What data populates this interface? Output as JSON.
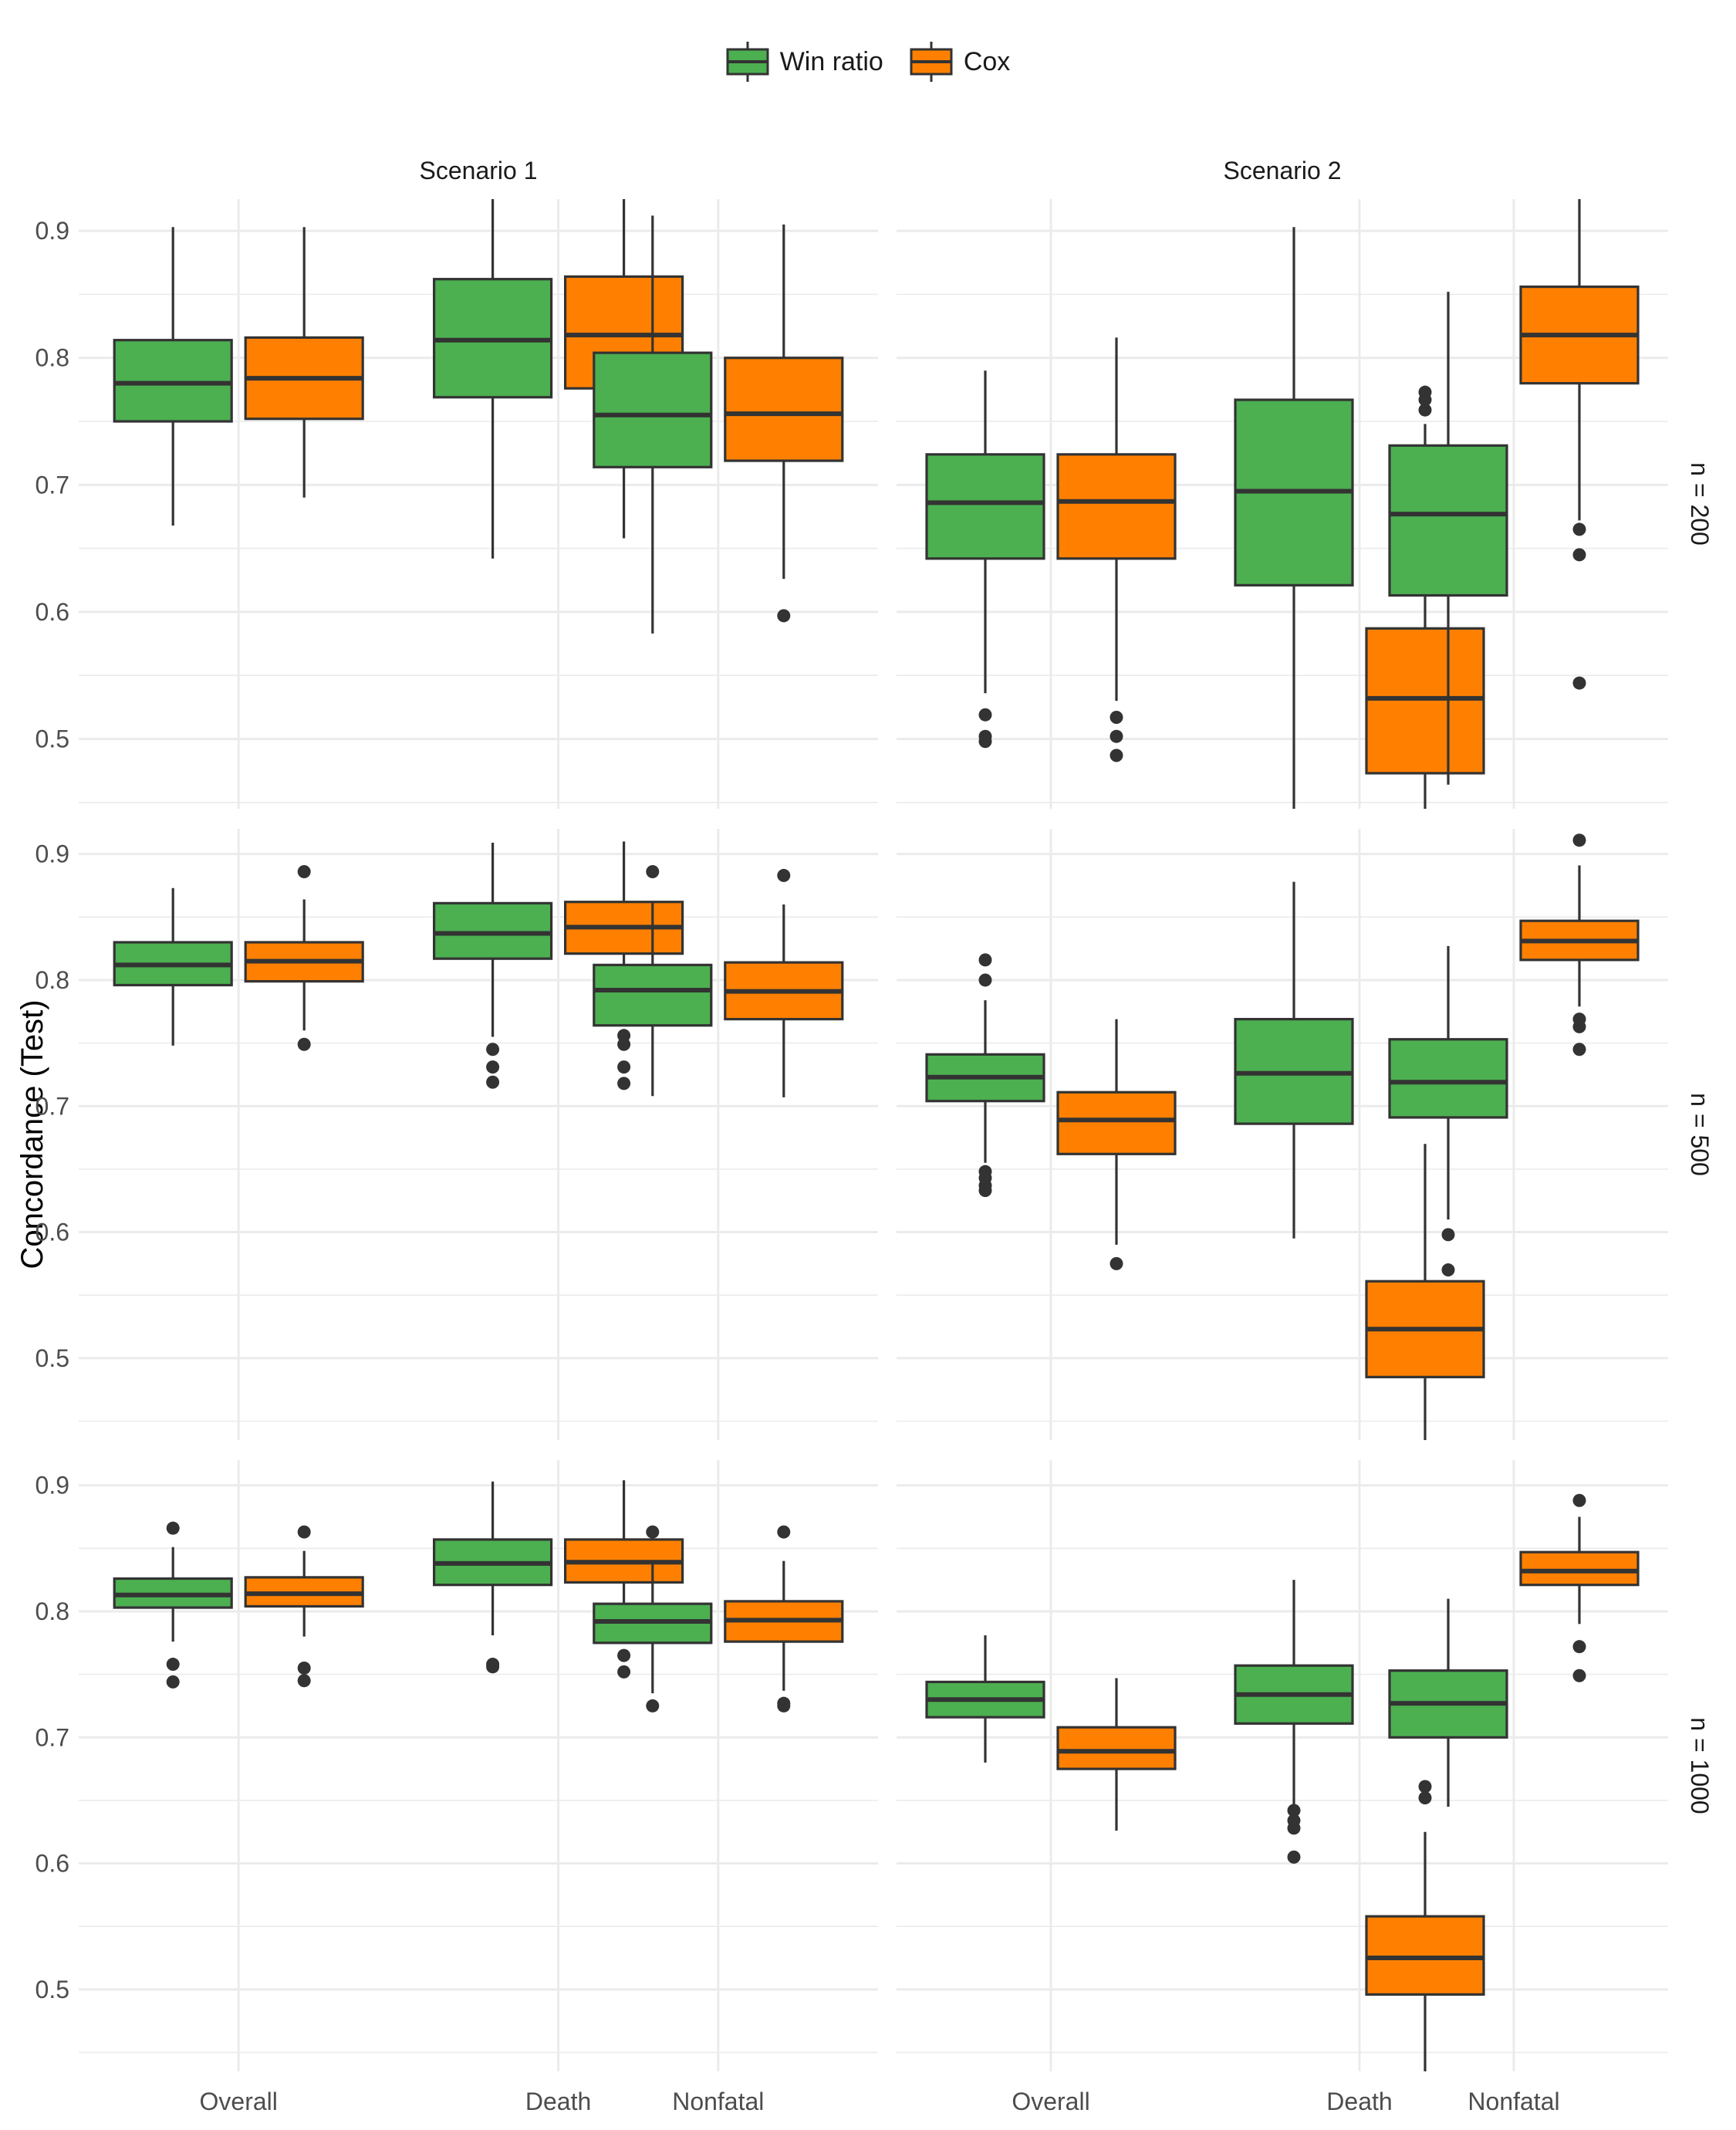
{
  "chart_data": {
    "type": "boxplot",
    "title": "",
    "ylabel": "Concordance (Test)",
    "xlabel": "",
    "legend": {
      "position": "top",
      "entries": [
        {
          "name": "Win ratio",
          "color": "#4CAF50"
        },
        {
          "name": "Cox",
          "color": "#FF8000"
        }
      ]
    },
    "facet_columns": [
      "Scenario 1",
      "Scenario 2"
    ],
    "facet_rows": [
      "n = 200",
      "n = 500",
      "n = 1000"
    ],
    "categories": [
      "Overall",
      "Death",
      "Nonfatal"
    ],
    "y_ticks": [
      0.5,
      0.6,
      0.7,
      0.8,
      0.9
    ],
    "ylim_by_row": [
      [
        0.445,
        0.925
      ],
      [
        0.435,
        0.92
      ],
      [
        0.435,
        0.92
      ]
    ],
    "grid": true,
    "panels": [
      {
        "row": 0,
        "col": 0,
        "boxes": [
          {
            "category": "Overall",
            "series": "Win ratio",
            "q1": 0.75,
            "median": 0.78,
            "q3": 0.814,
            "whisker_low": 0.668,
            "whisker_high": 0.903,
            "outliers": []
          },
          {
            "category": "Overall",
            "series": "Cox",
            "q1": 0.752,
            "median": 0.784,
            "q3": 0.816,
            "whisker_low": 0.69,
            "whisker_high": 0.903,
            "outliers": []
          },
          {
            "category": "Death",
            "series": "Win ratio",
            "q1": 0.769,
            "median": 0.814,
            "q3": 0.862,
            "whisker_low": 0.642,
            "whisker_high": 0.925,
            "outliers": []
          },
          {
            "category": "Death",
            "series": "Cox",
            "q1": 0.776,
            "median": 0.818,
            "q3": 0.864,
            "whisker_low": 0.658,
            "whisker_high": 0.925,
            "outliers": []
          },
          {
            "category": "Nonfatal",
            "series": "Win ratio",
            "q1": 0.714,
            "median": 0.755,
            "q3": 0.804,
            "whisker_low": 0.583,
            "whisker_high": 0.912,
            "outliers": []
          },
          {
            "category": "Nonfatal",
            "series": "Cox",
            "q1": 0.719,
            "median": 0.756,
            "q3": 0.8,
            "whisker_low": 0.626,
            "whisker_high": 0.905,
            "outliers": [
              0.597
            ]
          }
        ]
      },
      {
        "row": 0,
        "col": 1,
        "boxes": [
          {
            "category": "Overall",
            "series": "Win ratio",
            "q1": 0.642,
            "median": 0.686,
            "q3": 0.724,
            "whisker_low": 0.536,
            "whisker_high": 0.79,
            "outliers": [
              0.519,
              0.502,
              0.498
            ]
          },
          {
            "category": "Overall",
            "series": "Cox",
            "q1": 0.642,
            "median": 0.687,
            "q3": 0.724,
            "whisker_low": 0.53,
            "whisker_high": 0.816,
            "outliers": [
              0.517,
              0.502,
              0.487
            ]
          },
          {
            "category": "Death",
            "series": "Win ratio",
            "q1": 0.621,
            "median": 0.695,
            "q3": 0.767,
            "whisker_low": 0.445,
            "whisker_high": 0.903,
            "outliers": []
          },
          {
            "category": "Death",
            "series": "Cox",
            "q1": 0.473,
            "median": 0.532,
            "q3": 0.587,
            "whisker_low": 0.445,
            "whisker_high": 0.748,
            "outliers": [
              0.773,
              0.767,
              0.759
            ]
          },
          {
            "category": "Nonfatal",
            "series": "Win ratio",
            "q1": 0.613,
            "median": 0.677,
            "q3": 0.731,
            "whisker_low": 0.464,
            "whisker_high": 0.852,
            "outliers": []
          },
          {
            "category": "Nonfatal",
            "series": "Cox",
            "q1": 0.78,
            "median": 0.818,
            "q3": 0.856,
            "whisker_low": 0.672,
            "whisker_high": 0.925,
            "outliers": [
              0.665,
              0.645,
              0.544
            ]
          }
        ]
      },
      {
        "row": 1,
        "col": 0,
        "boxes": [
          {
            "category": "Overall",
            "series": "Win ratio",
            "q1": 0.796,
            "median": 0.812,
            "q3": 0.83,
            "whisker_low": 0.748,
            "whisker_high": 0.873,
            "outliers": []
          },
          {
            "category": "Overall",
            "series": "Cox",
            "q1": 0.799,
            "median": 0.815,
            "q3": 0.83,
            "whisker_low": 0.76,
            "whisker_high": 0.864,
            "outliers": [
              0.886,
              0.749
            ]
          },
          {
            "category": "Death",
            "series": "Win ratio",
            "q1": 0.817,
            "median": 0.837,
            "q3": 0.861,
            "whisker_low": 0.755,
            "whisker_high": 0.909,
            "outliers": [
              0.745,
              0.731,
              0.719
            ]
          },
          {
            "category": "Death",
            "series": "Cox",
            "q1": 0.821,
            "median": 0.842,
            "q3": 0.862,
            "whisker_low": 0.776,
            "whisker_high": 0.91,
            "outliers": [
              0.756,
              0.749,
              0.731,
              0.718
            ]
          },
          {
            "category": "Nonfatal",
            "series": "Win ratio",
            "q1": 0.764,
            "median": 0.792,
            "q3": 0.812,
            "whisker_low": 0.708,
            "whisker_high": 0.862,
            "outliers": [
              0.886
            ]
          },
          {
            "category": "Nonfatal",
            "series": "Cox",
            "q1": 0.769,
            "median": 0.791,
            "q3": 0.814,
            "whisker_low": 0.707,
            "whisker_high": 0.86,
            "outliers": [
              0.883
            ]
          }
        ]
      },
      {
        "row": 1,
        "col": 1,
        "boxes": [
          {
            "category": "Overall",
            "series": "Win ratio",
            "q1": 0.704,
            "median": 0.723,
            "q3": 0.741,
            "whisker_low": 0.655,
            "whisker_high": 0.784,
            "outliers": [
              0.816,
              0.8,
              0.648,
              0.643,
              0.637,
              0.633
            ]
          },
          {
            "category": "Overall",
            "series": "Cox",
            "q1": 0.662,
            "median": 0.689,
            "q3": 0.711,
            "whisker_low": 0.59,
            "whisker_high": 0.769,
            "outliers": [
              0.575
            ]
          },
          {
            "category": "Death",
            "series": "Win ratio",
            "q1": 0.686,
            "median": 0.726,
            "q3": 0.769,
            "whisker_low": 0.595,
            "whisker_high": 0.878,
            "outliers": []
          },
          {
            "category": "Death",
            "series": "Cox",
            "q1": 0.485,
            "median": 0.523,
            "q3": 0.561,
            "whisker_low": 0.435,
            "whisker_high": 0.67,
            "outliers": []
          },
          {
            "category": "Nonfatal",
            "series": "Win ratio",
            "q1": 0.691,
            "median": 0.719,
            "q3": 0.753,
            "whisker_low": 0.61,
            "whisker_high": 0.827,
            "outliers": [
              0.598,
              0.57
            ]
          },
          {
            "category": "Nonfatal",
            "series": "Cox",
            "q1": 0.816,
            "median": 0.831,
            "q3": 0.847,
            "whisker_low": 0.779,
            "whisker_high": 0.891,
            "outliers": [
              0.911,
              0.769,
              0.763,
              0.745
            ]
          }
        ]
      },
      {
        "row": 2,
        "col": 0,
        "boxes": [
          {
            "category": "Overall",
            "series": "Win ratio",
            "q1": 0.803,
            "median": 0.813,
            "q3": 0.826,
            "whisker_low": 0.776,
            "whisker_high": 0.851,
            "outliers": [
              0.866,
              0.758,
              0.744
            ]
          },
          {
            "category": "Overall",
            "series": "Cox",
            "q1": 0.804,
            "median": 0.814,
            "q3": 0.827,
            "whisker_low": 0.78,
            "whisker_high": 0.848,
            "outliers": [
              0.863,
              0.755,
              0.745
            ]
          },
          {
            "category": "Death",
            "series": "Win ratio",
            "q1": 0.821,
            "median": 0.838,
            "q3": 0.857,
            "whisker_low": 0.781,
            "whisker_high": 0.903,
            "outliers": [
              0.758,
              0.756
            ]
          },
          {
            "category": "Death",
            "series": "Cox",
            "q1": 0.823,
            "median": 0.839,
            "q3": 0.857,
            "whisker_low": 0.78,
            "whisker_high": 0.904,
            "outliers": [
              0.765,
              0.752
            ]
          },
          {
            "category": "Nonfatal",
            "series": "Win ratio",
            "q1": 0.775,
            "median": 0.792,
            "q3": 0.806,
            "whisker_low": 0.735,
            "whisker_high": 0.84,
            "outliers": [
              0.863,
              0.725
            ]
          },
          {
            "category": "Nonfatal",
            "series": "Cox",
            "q1": 0.776,
            "median": 0.793,
            "q3": 0.808,
            "whisker_low": 0.737,
            "whisker_high": 0.84,
            "outliers": [
              0.863,
              0.727,
              0.725
            ]
          }
        ]
      },
      {
        "row": 2,
        "col": 1,
        "boxes": [
          {
            "category": "Overall",
            "series": "Win ratio",
            "q1": 0.716,
            "median": 0.73,
            "q3": 0.744,
            "whisker_low": 0.68,
            "whisker_high": 0.781,
            "outliers": []
          },
          {
            "category": "Overall",
            "series": "Cox",
            "q1": 0.675,
            "median": 0.689,
            "q3": 0.708,
            "whisker_low": 0.626,
            "whisker_high": 0.747,
            "outliers": []
          },
          {
            "category": "Death",
            "series": "Win ratio",
            "q1": 0.711,
            "median": 0.734,
            "q3": 0.757,
            "whisker_low": 0.645,
            "whisker_high": 0.825,
            "outliers": [
              0.642,
              0.634,
              0.628,
              0.605
            ]
          },
          {
            "category": "Death",
            "series": "Cox",
            "q1": 0.496,
            "median": 0.525,
            "q3": 0.558,
            "whisker_low": 0.435,
            "whisker_high": 0.625,
            "outliers": [
              0.661,
              0.652
            ]
          },
          {
            "category": "Nonfatal",
            "series": "Win ratio",
            "q1": 0.7,
            "median": 0.727,
            "q3": 0.753,
            "whisker_low": 0.645,
            "whisker_high": 0.81,
            "outliers": []
          },
          {
            "category": "Nonfatal",
            "series": "Cox",
            "q1": 0.821,
            "median": 0.832,
            "q3": 0.847,
            "whisker_low": 0.79,
            "whisker_high": 0.875,
            "outliers": [
              0.888,
              0.772,
              0.749
            ]
          }
        ]
      }
    ]
  }
}
